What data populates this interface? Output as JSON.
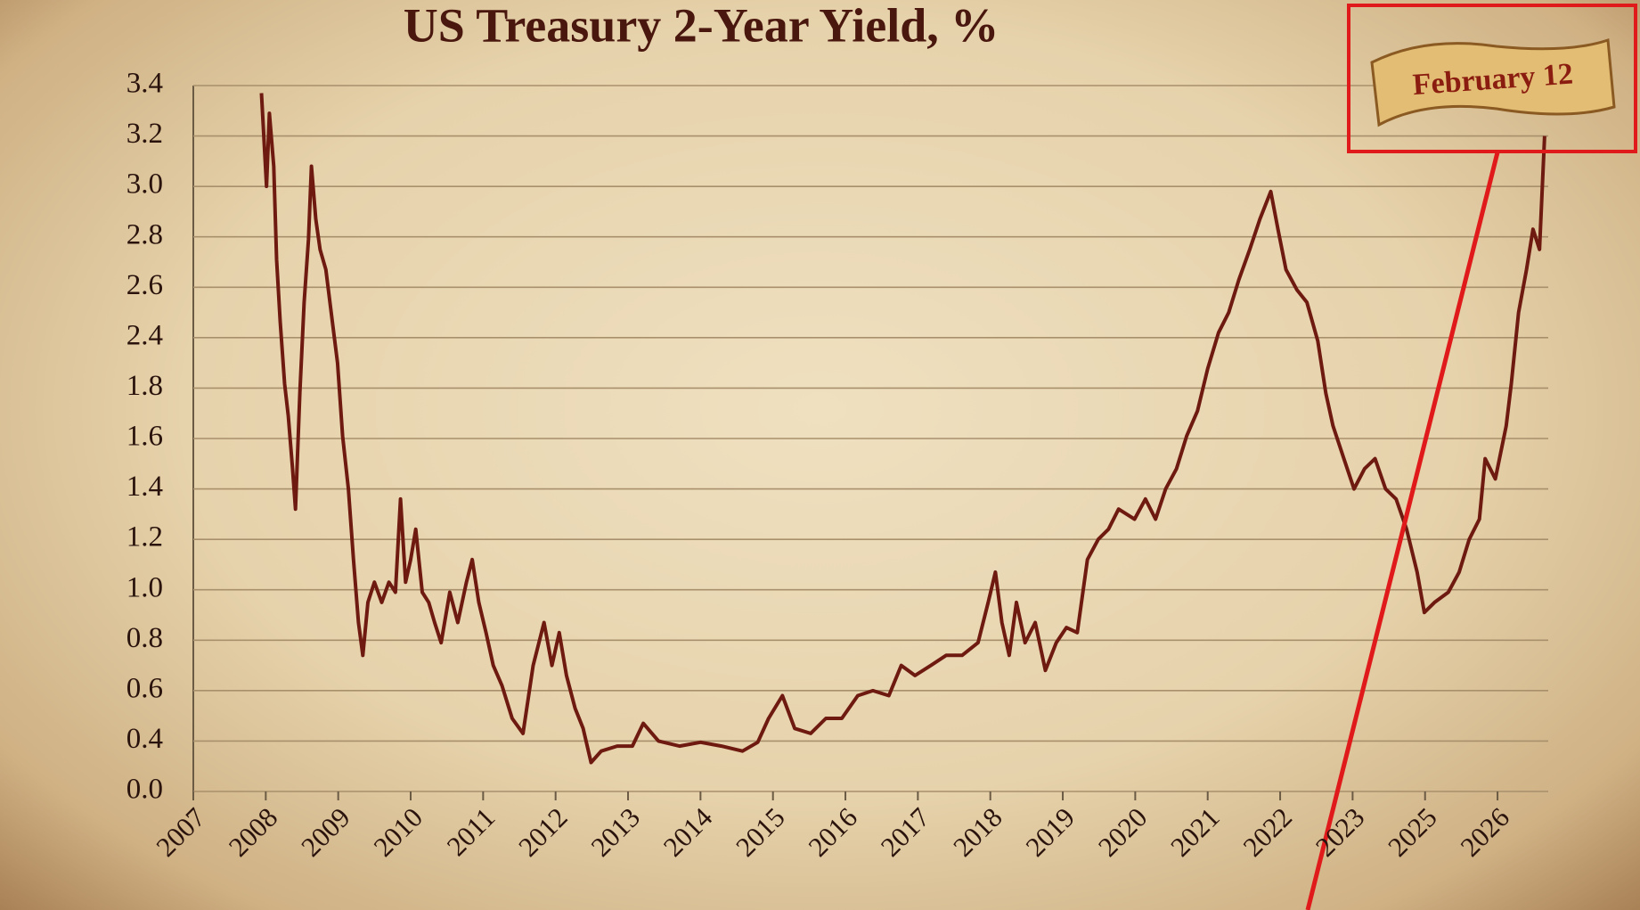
{
  "chart_data": {
    "type": "line",
    "title": "US Treasury 2-Year Yield, %",
    "annotation": "February 12",
    "color": "#6e1a10",
    "xlim": [
      2007,
      2026.7
    ],
    "xticks": [
      2007,
      2008,
      2009,
      2010,
      2011,
      2012,
      2013,
      2014,
      2015,
      2016,
      2017,
      2018,
      2019,
      2020,
      2021,
      2022,
      2023,
      2025,
      2026
    ],
    "ylim": [
      0,
      3.4
    ],
    "yticks": [
      {
        "value": 0,
        "label": "0.0"
      },
      0.4,
      0.6,
      0.8,
      {
        "value": 1,
        "label": "1.0"
      },
      1.2,
      1.4,
      1.6,
      1.8,
      2.4,
      2.6,
      2.8,
      {
        "value": 3,
        "label": "3.0"
      },
      3.2,
      3.4
    ],
    "grid": true,
    "x": [
      2007.94,
      2008.01,
      2008.05,
      2008.11,
      2008.15,
      2008.2,
      2008.26,
      2008.31,
      2008.37,
      2008.41,
      2008.47,
      2008.53,
      2008.59,
      2008.63,
      2008.69,
      2008.75,
      2008.83,
      2008.92,
      2008.99,
      2009.06,
      2009.14,
      2009.21,
      2009.28,
      2009.34,
      2009.41,
      2009.5,
      2009.6,
      2009.7,
      2009.79,
      2009.86,
      2009.93,
      2010.0,
      2010.07,
      2010.16,
      2010.25,
      2010.33,
      2010.42,
      2010.54,
      2010.65,
      2010.77,
      2010.85,
      2010.94,
      2011.04,
      2011.14,
      2011.26,
      2011.4,
      2011.55,
      2011.69,
      2011.84,
      2011.95,
      2012.05,
      2012.15,
      2012.27,
      2012.38,
      2012.49,
      2012.63,
      2012.85,
      2013.06,
      2013.21,
      2013.42,
      2013.71,
      2014.0,
      2014.29,
      2014.58,
      2014.79,
      2014.94,
      2015.13,
      2015.3,
      2015.52,
      2015.73,
      2015.95,
      2016.17,
      2016.38,
      2016.6,
      2016.77,
      2016.96,
      2017.18,
      2017.39,
      2017.61,
      2017.83,
      2017.97,
      2018.07,
      2018.16,
      2018.26,
      2018.36,
      2018.48,
      2018.62,
      2018.76,
      2018.91,
      2019.05,
      2019.2,
      2019.34,
      2019.49,
      2019.63,
      2019.77,
      2019.99,
      2020.14,
      2020.28,
      2020.42,
      2020.57,
      2020.71,
      2020.86,
      2021.0,
      2021.15,
      2021.29,
      2021.43,
      2021.58,
      2021.72,
      2021.87,
      2021.97,
      2022.08,
      2022.23,
      2022.37,
      2022.52,
      2022.63,
      2022.73,
      2022.88,
      2023.04,
      2023.33,
      2023.62,
      2023.91,
      2024.2,
      2024.49,
      2024.78,
      2024.98,
      2025.13,
      2025.32,
      2025.47,
      2025.61,
      2025.75,
      2025.83,
      2025.97,
      2026.12,
      2026.19,
      2026.29,
      2026.4,
      2026.49,
      2026.58,
      2026.65
    ],
    "values": [
      3.37,
      3.0,
      3.29,
      3.08,
      2.71,
      2.46,
      1.85,
      1.69,
      1.48,
      1.32,
      1.78,
      2.54,
      2.79,
      3.08,
      2.87,
      2.75,
      2.67,
      2.46,
      2.1,
      1.61,
      1.4,
      1.12,
      0.87,
      0.74,
      0.95,
      1.03,
      0.95,
      1.03,
      0.99,
      1.36,
      1.03,
      1.12,
      1.24,
      0.99,
      0.95,
      0.87,
      0.79,
      0.99,
      0.87,
      1.03,
      1.12,
      0.95,
      0.83,
      0.7,
      0.62,
      0.49,
      0.43,
      0.7,
      0.87,
      0.7,
      0.83,
      0.66,
      0.53,
      0.45,
      0.23,
      0.32,
      0.36,
      0.36,
      0.47,
      0.4,
      0.36,
      0.39,
      0.36,
      0.32,
      0.39,
      0.49,
      0.58,
      0.45,
      0.43,
      0.49,
      0.49,
      0.58,
      0.6,
      0.58,
      0.7,
      0.66,
      0.7,
      0.74,
      0.74,
      0.79,
      0.95,
      1.07,
      0.87,
      0.74,
      0.95,
      0.79,
      0.87,
      0.68,
      0.79,
      0.85,
      0.83,
      1.12,
      1.2,
      1.24,
      1.32,
      1.28,
      1.36,
      1.28,
      1.4,
      1.48,
      1.61,
      1.71,
      2.03,
      2.42,
      2.5,
      2.63,
      2.75,
      2.87,
      2.98,
      2.83,
      2.67,
      2.59,
      2.54,
      2.36,
      1.78,
      1.65,
      1.52,
      1.4,
      1.48,
      1.52,
      1.4,
      1.36,
      1.24,
      1.07,
      0.91,
      0.95,
      0.99,
      1.07,
      1.2,
      1.28,
      1.52,
      1.44,
      1.65,
      1.85,
      2.5,
      2.67,
      2.83,
      2.75,
      3.2
    ]
  }
}
